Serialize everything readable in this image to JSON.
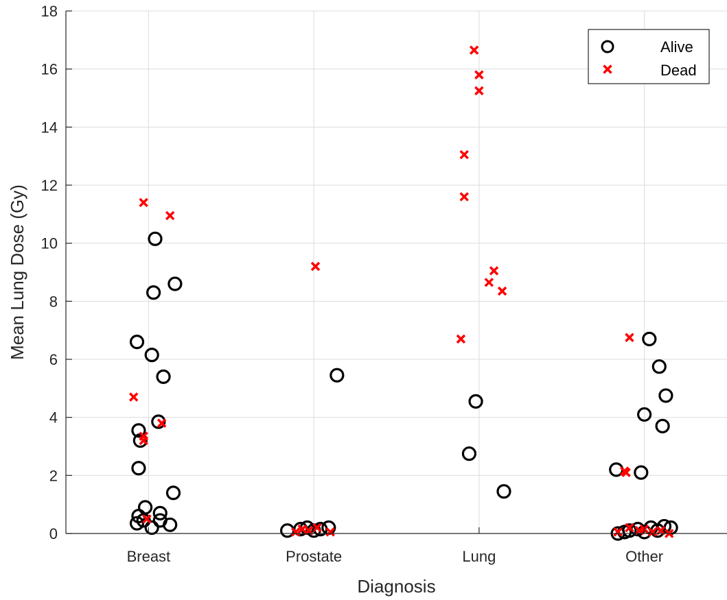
{
  "chart_data": {
    "type": "scatter",
    "title": "",
    "xlabel": "Diagnosis",
    "ylabel": "Mean Lung Dose (Gy)",
    "categories": [
      "Breast",
      "Prostate",
      "Lung",
      "Other"
    ],
    "ylim": [
      0,
      18
    ],
    "yticks": [
      0,
      2,
      4,
      6,
      8,
      10,
      12,
      14,
      16,
      18
    ],
    "grid": true,
    "legend_position": "top-right",
    "series": [
      {
        "name": "Alive",
        "marker": "circle",
        "color": "#000000",
        "points": [
          {
            "category": "Breast",
            "offset": -0.07,
            "y": 6.6
          },
          {
            "category": "Breast",
            "offset": 0.04,
            "y": 10.15
          },
          {
            "category": "Breast",
            "offset": 0.03,
            "y": 8.3
          },
          {
            "category": "Breast",
            "offset": 0.16,
            "y": 8.6
          },
          {
            "category": "Breast",
            "offset": 0.02,
            "y": 6.15
          },
          {
            "category": "Breast",
            "offset": 0.09,
            "y": 5.4
          },
          {
            "category": "Breast",
            "offset": 0.06,
            "y": 3.85
          },
          {
            "category": "Breast",
            "offset": -0.06,
            "y": 3.55
          },
          {
            "category": "Breast",
            "offset": -0.05,
            "y": 3.2
          },
          {
            "category": "Breast",
            "offset": -0.06,
            "y": 2.25
          },
          {
            "category": "Breast",
            "offset": 0.15,
            "y": 1.4
          },
          {
            "category": "Breast",
            "offset": -0.02,
            "y": 0.9
          },
          {
            "category": "Breast",
            "offset": -0.06,
            "y": 0.6
          },
          {
            "category": "Breast",
            "offset": 0.07,
            "y": 0.7
          },
          {
            "category": "Breast",
            "offset": -0.07,
            "y": 0.35
          },
          {
            "category": "Breast",
            "offset": -0.03,
            "y": 0.45
          },
          {
            "category": "Breast",
            "offset": 0.02,
            "y": 0.2
          },
          {
            "category": "Breast",
            "offset": 0.07,
            "y": 0.45
          },
          {
            "category": "Breast",
            "offset": 0.13,
            "y": 0.3
          },
          {
            "category": "Prostate",
            "offset": 0.14,
            "y": 5.45
          },
          {
            "category": "Prostate",
            "offset": -0.16,
            "y": 0.1
          },
          {
            "category": "Prostate",
            "offset": -0.08,
            "y": 0.15
          },
          {
            "category": "Prostate",
            "offset": -0.04,
            "y": 0.2
          },
          {
            "category": "Prostate",
            "offset": 0.0,
            "y": 0.1
          },
          {
            "category": "Prostate",
            "offset": 0.04,
            "y": 0.15
          },
          {
            "category": "Prostate",
            "offset": 0.09,
            "y": 0.2
          },
          {
            "category": "Lung",
            "offset": -0.02,
            "y": 4.55
          },
          {
            "category": "Lung",
            "offset": -0.06,
            "y": 2.75
          },
          {
            "category": "Lung",
            "offset": 0.15,
            "y": 1.45
          },
          {
            "category": "Other",
            "offset": 0.03,
            "y": 6.7
          },
          {
            "category": "Other",
            "offset": 0.09,
            "y": 5.75
          },
          {
            "category": "Other",
            "offset": 0.13,
            "y": 4.75
          },
          {
            "category": "Other",
            "offset": 0.0,
            "y": 4.1
          },
          {
            "category": "Other",
            "offset": 0.11,
            "y": 3.7
          },
          {
            "category": "Other",
            "offset": -0.17,
            "y": 2.2
          },
          {
            "category": "Other",
            "offset": -0.02,
            "y": 2.1
          },
          {
            "category": "Other",
            "offset": -0.16,
            "y": 0.0
          },
          {
            "category": "Other",
            "offset": -0.12,
            "y": 0.05
          },
          {
            "category": "Other",
            "offset": -0.09,
            "y": 0.1
          },
          {
            "category": "Other",
            "offset": -0.04,
            "y": 0.15
          },
          {
            "category": "Other",
            "offset": 0.0,
            "y": 0.05
          },
          {
            "category": "Other",
            "offset": 0.04,
            "y": 0.2
          },
          {
            "category": "Other",
            "offset": 0.08,
            "y": 0.1
          },
          {
            "category": "Other",
            "offset": 0.12,
            "y": 0.25
          },
          {
            "category": "Other",
            "offset": 0.16,
            "y": 0.2
          }
        ]
      },
      {
        "name": "Dead",
        "marker": "x",
        "color": "#ff0000",
        "points": [
          {
            "category": "Breast",
            "offset": -0.03,
            "y": 11.4
          },
          {
            "category": "Breast",
            "offset": 0.13,
            "y": 10.95
          },
          {
            "category": "Breast",
            "offset": -0.09,
            "y": 4.7
          },
          {
            "category": "Breast",
            "offset": -0.03,
            "y": 3.35
          },
          {
            "category": "Breast",
            "offset": -0.03,
            "y": 3.2
          },
          {
            "category": "Breast",
            "offset": 0.08,
            "y": 3.8
          },
          {
            "category": "Breast",
            "offset": -0.01,
            "y": 0.5
          },
          {
            "category": "Prostate",
            "offset": 0.01,
            "y": 9.2
          },
          {
            "category": "Prostate",
            "offset": -0.11,
            "y": 0.05
          },
          {
            "category": "Prostate",
            "offset": -0.07,
            "y": 0.15
          },
          {
            "category": "Prostate",
            "offset": -0.03,
            "y": 0.1
          },
          {
            "category": "Prostate",
            "offset": 0.02,
            "y": 0.2
          },
          {
            "category": "Prostate",
            "offset": 0.1,
            "y": 0.05
          },
          {
            "category": "Lung",
            "offset": -0.03,
            "y": 16.65
          },
          {
            "category": "Lung",
            "offset": 0.0,
            "y": 15.8
          },
          {
            "category": "Lung",
            "offset": 0.0,
            "y": 15.25
          },
          {
            "category": "Lung",
            "offset": -0.09,
            "y": 13.05
          },
          {
            "category": "Lung",
            "offset": -0.09,
            "y": 11.6
          },
          {
            "category": "Lung",
            "offset": 0.09,
            "y": 9.05
          },
          {
            "category": "Lung",
            "offset": 0.06,
            "y": 8.65
          },
          {
            "category": "Lung",
            "offset": 0.14,
            "y": 8.35
          },
          {
            "category": "Lung",
            "offset": -0.11,
            "y": 6.7
          },
          {
            "category": "Other",
            "offset": -0.09,
            "y": 6.75
          },
          {
            "category": "Other",
            "offset": -0.12,
            "y": 2.15
          },
          {
            "category": "Other",
            "offset": -0.11,
            "y": 2.1
          },
          {
            "category": "Other",
            "offset": -0.16,
            "y": 0.05
          },
          {
            "category": "Other",
            "offset": -0.09,
            "y": 0.2
          },
          {
            "category": "Other",
            "offset": -0.03,
            "y": 0.1
          },
          {
            "category": "Other",
            "offset": 0.0,
            "y": 0.15
          },
          {
            "category": "Other",
            "offset": 0.05,
            "y": 0.05
          },
          {
            "category": "Other",
            "offset": 0.1,
            "y": 0.1
          },
          {
            "category": "Other",
            "offset": 0.15,
            "y": 0.0
          }
        ]
      }
    ]
  },
  "legend": {
    "alive_label": "Alive",
    "dead_label": "Dead"
  }
}
